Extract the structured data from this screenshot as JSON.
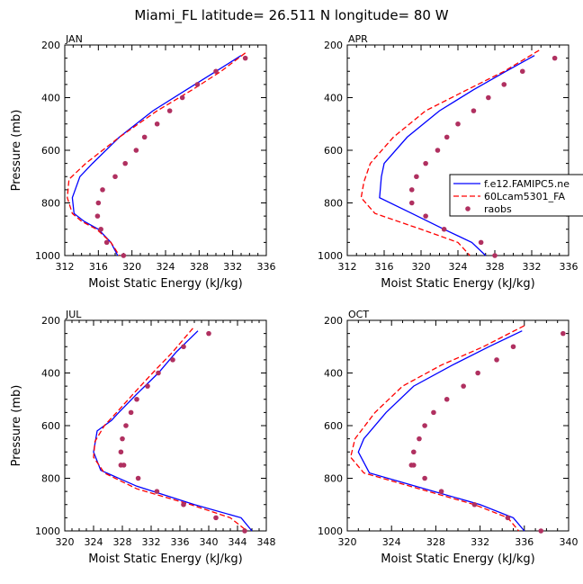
{
  "title": "Miami_FL  latitude= 26.511 N longitude= 80 W",
  "colors": {
    "model1": "#0000ff",
    "model2": "#ff0000",
    "obs": "#b03060"
  },
  "legend": {
    "entries": [
      "f.e12.FAMIPC5.ne",
      "60Lcam5301_FA",
      "raobs"
    ]
  },
  "chart_data": [
    {
      "type": "line",
      "panel": "JAN",
      "xlabel": "Moist Static Energy (kJ/kg)",
      "ylabel": "Pressure (mb)",
      "xlim": [
        312,
        336
      ],
      "ylim": [
        1000,
        200
      ],
      "xticks": [
        312,
        316,
        320,
        324,
        328,
        332,
        336
      ],
      "yticks": [
        200,
        400,
        600,
        800,
        1000
      ],
      "series": [
        {
          "name": "f.e12.FAMIPC5.ne",
          "style": "solid",
          "x": [
            333.0,
            330.0,
            326.5,
            322.5,
            318.5,
            315.3,
            313.8,
            312.9,
            313.1,
            314.3,
            316.0,
            317.5,
            318.3
          ],
          "y": [
            240,
            300,
            370,
            450,
            550,
            650,
            700,
            780,
            840,
            870,
            900,
            950,
            1000
          ]
        },
        {
          "name": "60Lcam5301_FA",
          "style": "dashed",
          "x": [
            333.5,
            330.6,
            327.2,
            323.0,
            318.5,
            314.5,
            312.5,
            312.3,
            312.9,
            314.0,
            315.8,
            317.5,
            318.5
          ],
          "y": [
            230,
            300,
            370,
            450,
            550,
            650,
            710,
            780,
            840,
            870,
            900,
            950,
            1000
          ]
        },
        {
          "name": "raobs",
          "style": "dots",
          "x": [
            333.5,
            330.0,
            327.8,
            326.0,
            324.5,
            323.0,
            321.5,
            320.5,
            319.2,
            318.0,
            316.5,
            316.0,
            315.9,
            316.3,
            317.0,
            319.0
          ],
          "y": [
            250,
            300,
            350,
            400,
            450,
            500,
            550,
            600,
            650,
            700,
            750,
            800,
            850,
            900,
            950,
            1000
          ]
        }
      ]
    },
    {
      "type": "line",
      "panel": "APR",
      "xlabel": "Moist Static Energy (kJ/kg)",
      "ylabel": "",
      "xlim": [
        312,
        336
      ],
      "ylim": [
        1000,
        200
      ],
      "xticks": [
        312,
        316,
        320,
        324,
        328,
        332,
        336
      ],
      "yticks": [
        200,
        400,
        600,
        800,
        1000
      ],
      "series": [
        {
          "name": "f.e12.FAMIPC5.ne",
          "style": "solid",
          "x": [
            332.3,
            329.2,
            325.7,
            322.0,
            318.5,
            316.0,
            315.7,
            315.5,
            319.0,
            322.5,
            325.5,
            327.0
          ],
          "y": [
            240,
            300,
            370,
            450,
            550,
            650,
            700,
            780,
            840,
            900,
            950,
            1000
          ]
        },
        {
          "name": "60Lcam5301_FA",
          "style": "dashed",
          "x": [
            332.8,
            329.0,
            325.0,
            320.5,
            317.0,
            314.5,
            313.8,
            313.5,
            315.0,
            320.0,
            324.0,
            325.3
          ],
          "y": [
            220,
            300,
            370,
            450,
            550,
            650,
            720,
            780,
            840,
            900,
            950,
            1000
          ]
        },
        {
          "name": "raobs",
          "style": "dots",
          "x": [
            334.5,
            331.0,
            329.0,
            327.3,
            325.7,
            324.0,
            322.8,
            321.8,
            320.5,
            319.5,
            319.0,
            319.0,
            320.5,
            322.5,
            326.5,
            328.0
          ],
          "y": [
            250,
            300,
            350,
            400,
            450,
            500,
            550,
            600,
            650,
            700,
            750,
            800,
            850,
            900,
            950,
            1000
          ]
        }
      ]
    },
    {
      "type": "line",
      "panel": "JUL",
      "xlabel": "Moist Static Energy (kJ/kg)",
      "ylabel": "Pressure (mb)",
      "xlim": [
        320,
        348
      ],
      "ylim": [
        1000,
        200
      ],
      "xticks": [
        320,
        324,
        328,
        332,
        336,
        340,
        344,
        348
      ],
      "yticks": [
        200,
        400,
        600,
        800,
        1000
      ],
      "series": [
        {
          "name": "f.e12.FAMIPC5.ne",
          "style": "solid",
          "x": [
            338.5,
            335.5,
            333.0,
            330.0,
            327.5,
            326.5,
            324.5,
            324.0,
            325.0,
            330.0,
            338.0,
            344.5,
            346.0
          ],
          "y": [
            240,
            320,
            400,
            480,
            550,
            580,
            620,
            700,
            770,
            830,
            900,
            950,
            1000
          ]
        },
        {
          "name": "60Lcam5301_FA",
          "style": "dashed",
          "x": [
            337.8,
            335.0,
            332.2,
            329.5,
            327.2,
            325.5,
            324.2,
            324.0,
            325.5,
            330.0,
            337.5,
            343.0,
            345.3
          ],
          "y": [
            230,
            320,
            400,
            480,
            550,
            600,
            660,
            720,
            780,
            840,
            900,
            950,
            1000
          ]
        },
        {
          "name": "raobs",
          "style": "dots",
          "x": [
            340.0,
            336.5,
            335.0,
            333.0,
            331.5,
            330.0,
            329.2,
            328.5,
            328.0,
            327.8,
            327.8,
            328.2,
            330.2,
            332.8,
            336.5,
            341.0,
            345.0
          ],
          "y": [
            250,
            300,
            350,
            400,
            450,
            500,
            550,
            600,
            650,
            700,
            750,
            750,
            800,
            850,
            900,
            950,
            1000
          ]
        }
      ]
    },
    {
      "type": "line",
      "panel": "OCT",
      "xlabel": "Moist Static Energy (kJ/kg)",
      "ylabel": "",
      "xlim": [
        320,
        340
      ],
      "ylim": [
        1000,
        200
      ],
      "xticks": [
        320,
        324,
        328,
        332,
        336,
        340
      ],
      "yticks": [
        200,
        400,
        600,
        800,
        1000
      ],
      "series": [
        {
          "name": "f.e12.FAMIPC5.ne",
          "style": "solid",
          "x": [
            335.8,
            332.8,
            329.5,
            326.0,
            323.5,
            321.5,
            321.0,
            322.0,
            327.0,
            332.0,
            335.0,
            336.0
          ],
          "y": [
            240,
            300,
            370,
            450,
            550,
            650,
            700,
            780,
            840,
            900,
            950,
            1000
          ]
        },
        {
          "name": "60Lcam5301_FA",
          "style": "dashed",
          "x": [
            336.0,
            332.3,
            328.5,
            325.0,
            322.5,
            320.7,
            320.3,
            321.5,
            326.5,
            331.5,
            334.5,
            335.5
          ],
          "y": [
            220,
            300,
            370,
            450,
            550,
            650,
            720,
            780,
            840,
            900,
            950,
            1000
          ]
        },
        {
          "name": "raobs",
          "style": "dots",
          "x": [
            339.5,
            335.0,
            333.5,
            331.8,
            330.5,
            329.0,
            327.8,
            327.0,
            326.5,
            326.0,
            326.0,
            325.8,
            327.0,
            328.5,
            331.5,
            334.5,
            337.5
          ],
          "y": [
            250,
            300,
            350,
            400,
            450,
            500,
            550,
            600,
            650,
            700,
            750,
            750,
            800,
            850,
            900,
            950,
            1000
          ]
        }
      ]
    }
  ]
}
